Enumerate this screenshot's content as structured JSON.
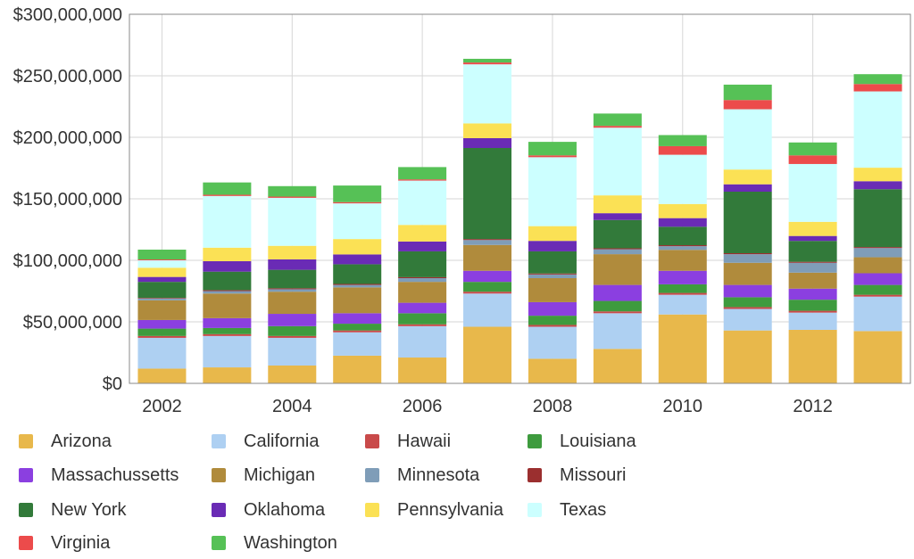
{
  "chart_data": {
    "type": "bar",
    "stacked": true,
    "x": [
      2002,
      2003,
      2004,
      2005,
      2006,
      2007,
      2008,
      2009,
      2010,
      2011,
      2012,
      2013
    ],
    "x_tick_labels": [
      "2002",
      "2004",
      "2006",
      "2008",
      "2010",
      "2012"
    ],
    "y_tick_labels": [
      "$0",
      "$50,000,000",
      "$100,000,000",
      "$150,000,000",
      "$200,000,000",
      "$250,000,000",
      "$300,000,000"
    ],
    "ylim": [
      0,
      300000000
    ],
    "grid": true,
    "legend_position": "bottom",
    "series": [
      {
        "name": "Arizona",
        "color": "#e8b84b",
        "values": [
          12000000,
          13000000,
          14500000,
          22500000,
          21000000,
          46000000,
          20000000,
          28000000,
          56000000,
          43000000,
          43500000,
          42500000
        ]
      },
      {
        "name": "California",
        "color": "#aed0f2",
        "values": [
          25000000,
          25500000,
          22500000,
          19000000,
          25500000,
          27000000,
          26000000,
          29000000,
          16000000,
          17500000,
          14000000,
          28000000
        ]
      },
      {
        "name": "Hawaii",
        "color": "#c94a4a",
        "values": [
          1500000,
          1500000,
          1500000,
          1500000,
          1500000,
          1500000,
          1500000,
          1500000,
          1500000,
          1500000,
          1500000,
          1500000
        ]
      },
      {
        "name": "Louisiana",
        "color": "#3e9b3e",
        "values": [
          6000000,
          5000000,
          8000000,
          5500000,
          9000000,
          8000000,
          7500000,
          8500000,
          7000000,
          8000000,
          9000000,
          8000000
        ]
      },
      {
        "name": "Massachussetts",
        "color": "#8b3fe0",
        "values": [
          7000000,
          8000000,
          10000000,
          8500000,
          8500000,
          9000000,
          11000000,
          13000000,
          11000000,
          10000000,
          9000000,
          9500000
        ]
      },
      {
        "name": "Michigan",
        "color": "#b08b3c",
        "values": [
          16000000,
          20000000,
          18000000,
          21000000,
          17000000,
          21000000,
          19500000,
          25000000,
          17000000,
          18000000,
          13000000,
          13000000
        ]
      },
      {
        "name": "Minnesota",
        "color": "#7f9db8",
        "values": [
          1500000,
          2000000,
          2000000,
          2000000,
          3000000,
          4000000,
          3000000,
          4000000,
          3000000,
          7000000,
          8000000,
          7500000
        ]
      },
      {
        "name": "Missouri",
        "color": "#9b2f2f",
        "values": [
          500000,
          800000,
          800000,
          800000,
          800000,
          800000,
          800000,
          800000,
          800000,
          800000,
          800000,
          800000
        ]
      },
      {
        "name": "New York",
        "color": "#327a3a",
        "values": [
          13000000,
          15000000,
          15000000,
          16000000,
          21000000,
          74000000,
          18000000,
          23000000,
          15000000,
          50000000,
          17000000,
          47000000
        ]
      },
      {
        "name": "Oklahoma",
        "color": "#6a2bb5",
        "values": [
          4000000,
          8500000,
          8500000,
          8000000,
          8000000,
          8000000,
          8500000,
          5500000,
          7000000,
          6000000,
          4000000,
          6500000
        ]
      },
      {
        "name": "Pennsylvania",
        "color": "#fbe155",
        "values": [
          7500000,
          11000000,
          11000000,
          12500000,
          13500000,
          12000000,
          12000000,
          14500000,
          11500000,
          12000000,
          11500000,
          11000000
        ]
      },
      {
        "name": "Texas",
        "color": "#ccffff",
        "values": [
          6000000,
          42000000,
          39000000,
          29000000,
          36000000,
          48000000,
          56000000,
          55000000,
          40000000,
          49000000,
          47000000,
          62000000
        ]
      },
      {
        "name": "Virginia",
        "color": "#ec4b4b",
        "values": [
          700000,
          1000000,
          1000000,
          1000000,
          1000000,
          1500000,
          1500000,
          1500000,
          7000000,
          7500000,
          7000000,
          6000000
        ]
      },
      {
        "name": "Washington",
        "color": "#56c156",
        "values": [
          8000000,
          10000000,
          8500000,
          13500000,
          10000000,
          3000000,
          11000000,
          10000000,
          9000000,
          12500000,
          10500000,
          8000000
        ]
      }
    ]
  }
}
